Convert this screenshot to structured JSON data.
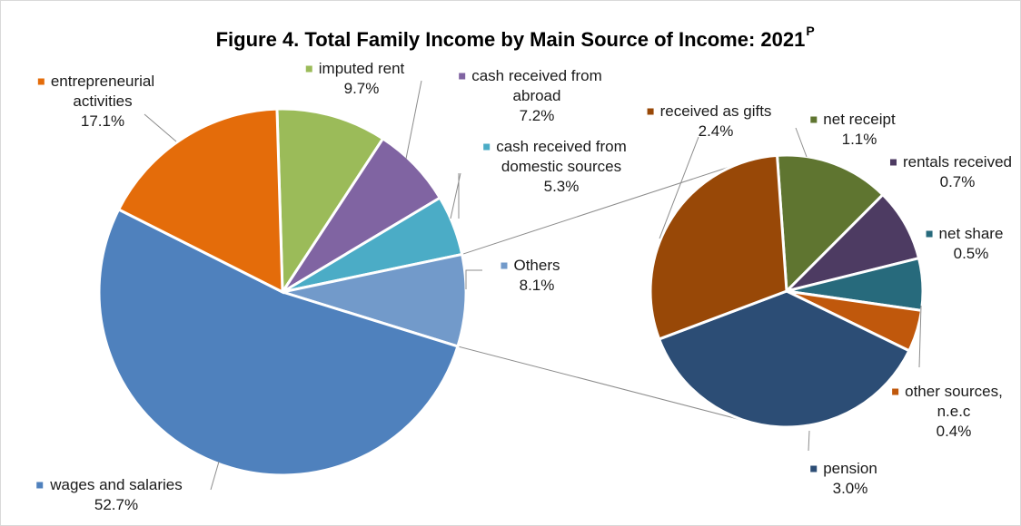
{
  "chart_data": {
    "type": "pie",
    "title": "Figure 4. Total Family Income by Main Source of Income: 2021",
    "title_superscript": "P",
    "main_pie": {
      "slices": [
        {
          "label": [
            "imputed rent"
          ],
          "value_label": "9.7%",
          "value": 9.7,
          "color": "#9bbb59"
        },
        {
          "label": [
            "cash received from",
            "abroad"
          ],
          "value_label": "7.2%",
          "value": 7.2,
          "color": "#8064a2"
        },
        {
          "label": [
            "cash received from",
            "domestic sources"
          ],
          "value_label": "5.3%",
          "value": 5.3,
          "color": "#4bacc6"
        },
        {
          "label": [
            "Others"
          ],
          "value_label": "8.1%",
          "value": 8.1,
          "color": "#729aca"
        },
        {
          "label": [
            "wages and salaries"
          ],
          "value_label": "52.7%",
          "value": 52.7,
          "color": "#4f81bd"
        },
        {
          "label": [
            "entrepreneurial",
            "activities"
          ],
          "value_label": "17.1%",
          "value": 17.1,
          "color": "#e46c0a"
        }
      ]
    },
    "secondary_pie": {
      "breakdown_of": "Others",
      "slices": [
        {
          "label": [
            "net receipt"
          ],
          "value_label": "1.1%",
          "value": 1.1,
          "color": "#5f7530"
        },
        {
          "label": [
            "rentals received"
          ],
          "value_label": "0.7%",
          "value": 0.7,
          "color": "#4d3b62"
        },
        {
          "label": [
            "net share"
          ],
          "value_label": "0.5%",
          "value": 0.5,
          "color": "#276a7c"
        },
        {
          "label": [
            "other sources,",
            "n.e.c"
          ],
          "value_label": "0.4%",
          "value": 0.4,
          "color": "#c0580c"
        },
        {
          "label": [
            "pension"
          ],
          "value_label": "3.0%",
          "value": 3.0,
          "color": "#2c4d75"
        },
        {
          "label": [
            "received as gifts"
          ],
          "value_label": "2.4%",
          "value": 2.4,
          "color": "#984807"
        }
      ]
    }
  }
}
